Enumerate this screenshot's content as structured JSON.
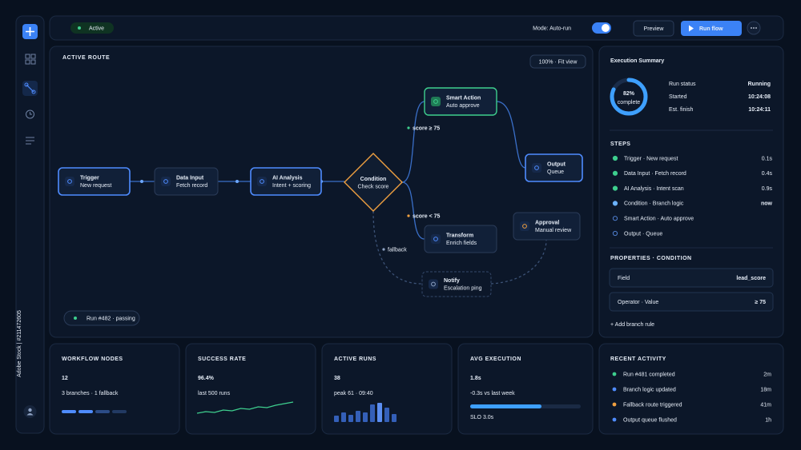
{
  "sidebar": {
    "watermark": "Adobe Stock | #211472605"
  },
  "topbar": {
    "status": "Active",
    "mode": "Mode: Auto-run",
    "preview": "Preview",
    "run": "Run flow"
  },
  "canvas": {
    "title": "ACTIVE ROUTE",
    "fit": "100% · Fit view",
    "run_status": "Run #482 · passing",
    "nodes": [
      {
        "title": "Trigger",
        "sub": "New request"
      },
      {
        "title": "Data Input",
        "sub": "Fetch record"
      },
      {
        "title": "AI Analysis",
        "sub": "Intent + scoring"
      },
      {
        "title": "Condition",
        "sub": "Check score"
      },
      {
        "title": "Smart Action",
        "sub": "Auto approve"
      },
      {
        "title": "Output",
        "sub": "Queue"
      },
      {
        "title": "Transform",
        "sub": "Enrich fields"
      },
      {
        "title": "Approval",
        "sub": "Manual review"
      },
      {
        "title": "Notify",
        "sub": "Escalation ping"
      }
    ],
    "edge_labels": [
      "score ≥ 75",
      "score < 75",
      "fallback"
    ]
  },
  "summary": {
    "title": "Execution Summary",
    "progress": {
      "value": 82,
      "label": "82%"
    },
    "progress_caption": "complete",
    "rows": [
      [
        "Run status",
        "Running"
      ],
      [
        "Started",
        "10:24:08"
      ],
      [
        "Est. finish",
        "10:24:11"
      ]
    ],
    "steps_title": "STEPS",
    "steps": [
      {
        "name": "Trigger · New request",
        "time": "0.1s",
        "state": "done"
      },
      {
        "name": "Data Input · Fetch record",
        "time": "0.4s",
        "state": "done"
      },
      {
        "name": "AI Analysis · Intent scan",
        "time": "0.9s",
        "state": "done"
      },
      {
        "name": "Condition · Branch logic",
        "time": "now",
        "state": "current"
      },
      {
        "name": "Smart Action · Auto approve",
        "state": "pending"
      },
      {
        "name": "Output · Queue",
        "state": "pending"
      }
    ],
    "properties_title": "PROPERTIES · CONDITION",
    "properties": [
      [
        "Field",
        "lead_score"
      ],
      [
        "Operator · Value",
        "≥ 75"
      ]
    ],
    "add": "+ Add branch rule"
  },
  "stats": [
    {
      "title": "WORKFLOW NODES",
      "value": "12",
      "sub": "3 branches · 1 fallback"
    },
    {
      "title": "SUCCESS RATE",
      "value": "96.4%",
      "sub": "last 500 runs"
    },
    {
      "title": "ACTIVE RUNS",
      "value": "38",
      "sub": "peak 61 · 09:40"
    },
    {
      "title": "AVG EXECUTION",
      "value": "1.8s",
      "sub": "-0.3s vs last week",
      "note": "SLO 3.0s"
    }
  ],
  "sparkline": [
    2,
    3,
    2.5,
    4,
    3.5,
    5,
    4.5,
    6,
    5.5,
    7,
    8,
    9
  ],
  "run_bars": [
    8,
    12,
    9,
    14,
    12,
    22,
    24,
    18,
    10
  ],
  "activity": {
    "title": "RECENT ACTIVITY",
    "items": [
      {
        "text": "Run #481 completed",
        "time": "2m",
        "color": "#3ecf8e"
      },
      {
        "text": "Branch logic updated",
        "time": "18m",
        "color": "#4f8cff"
      },
      {
        "text": "Fallback route triggered",
        "time": "41m",
        "color": "#f0a040"
      },
      {
        "text": "Output queue flushed",
        "time": "1h",
        "color": "#4f8cff"
      }
    ]
  }
}
